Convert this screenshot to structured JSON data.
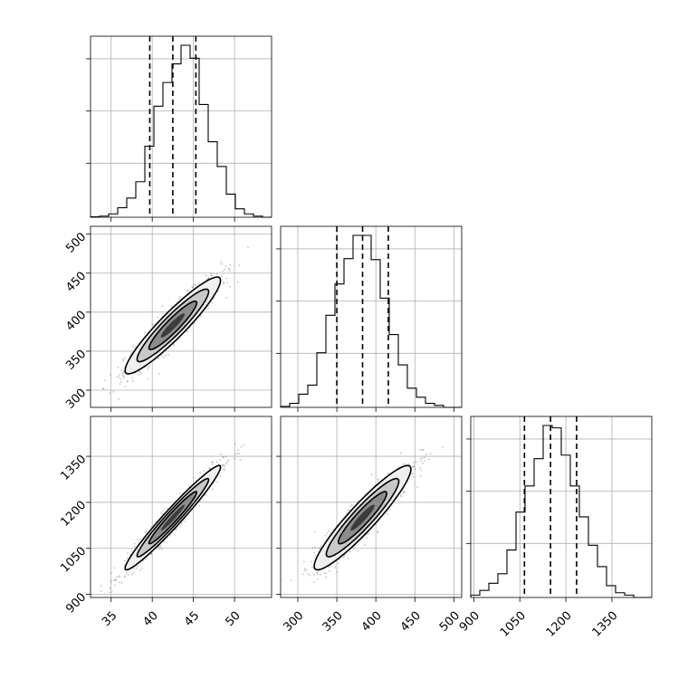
{
  "chart_data": {
    "type": "corner",
    "title": "",
    "grid": true,
    "colors": {
      "line": "#000000",
      "grid": "#b0b0b0",
      "points": "#555555",
      "level1": "#f0f0f0",
      "level2": "#c8c8c8",
      "level3": "#8c8c8c",
      "level4": "#3c3c3c"
    },
    "parameters": [
      {
        "name": "p0",
        "label": "",
        "range": [
          32.5,
          54.5
        ],
        "ticks": [
          35,
          40,
          45,
          50
        ],
        "tick_labels": [
          "35",
          "40",
          "45",
          "50"
        ],
        "mean": 42.5,
        "std": 2.9,
        "quantiles": [
          39.7,
          42.5,
          45.3
        ]
      },
      {
        "name": "p1",
        "label": "",
        "range": [
          278,
          510
        ],
        "ticks": [
          300,
          350,
          400,
          450,
          500
        ],
        "tick_labels": [
          "300",
          "350",
          "400",
          "450",
          "500"
        ],
        "mean": 383,
        "std": 31,
        "quantiles": [
          350,
          383,
          416
        ]
      },
      {
        "name": "p2",
        "label": "",
        "range": [
          890,
          1480
        ],
        "ticks": [
          900,
          1050,
          1200,
          1350
        ],
        "tick_labels": [
          "900",
          "1050",
          "1200",
          "1350"
        ],
        "mean": 1150,
        "std": 85,
        "quantiles": [
          1065,
          1150,
          1235
        ]
      }
    ],
    "histograms": [
      {
        "param": "p0",
        "bins": [
          32.5,
          33.6,
          34.7,
          35.8,
          36.9,
          38.0,
          39.1,
          40.2,
          41.3,
          42.4,
          43.5,
          44.6,
          45.7,
          46.8,
          47.9,
          49.0,
          50.1,
          51.2,
          52.3,
          53.4,
          54.5
        ],
        "counts": [
          1,
          2,
          6,
          17,
          34,
          63,
          126,
          197,
          239,
          272,
          305,
          282,
          200,
          134,
          90,
          41,
          15,
          6,
          2,
          0
        ]
      },
      {
        "param": "p1",
        "bins": [
          278,
          289.6,
          301.2,
          312.8,
          324.4,
          336,
          347.6,
          359.2,
          370.8,
          382.4,
          394,
          405.6,
          417.2,
          428.8,
          440.4,
          452,
          463.6,
          475.2,
          486.8,
          498.4,
          510
        ],
        "counts": [
          1,
          4,
          13,
          22,
          54,
          91,
          122,
          147,
          170,
          170,
          146,
          108,
          72,
          42,
          19,
          10,
          4,
          2,
          0,
          0
        ]
      },
      {
        "param": "p2",
        "bins": [
          890,
          919.5,
          949,
          978.5,
          1008,
          1037.5,
          1067,
          1096.5,
          1126,
          1155.5,
          1185,
          1214.5,
          1244,
          1273.5,
          1303,
          1332.5,
          1362,
          1391.5,
          1421,
          1450.5,
          1480
        ],
        "counts": [
          2,
          6,
          12,
          20,
          40,
          72,
          94,
          117,
          145,
          143,
          120,
          94,
          68,
          44,
          26,
          10,
          4,
          2,
          0,
          0
        ]
      }
    ],
    "pairs": [
      {
        "x": "p0",
        "y": "p1",
        "correlation": 0.93
      },
      {
        "x": "p0",
        "y": "p2",
        "correlation": 0.97
      },
      {
        "x": "p1",
        "y": "p2",
        "correlation": 0.93
      }
    ]
  }
}
